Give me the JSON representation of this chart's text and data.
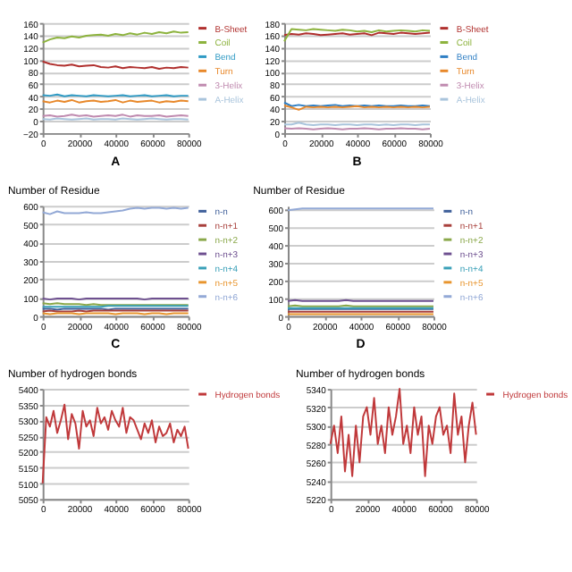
{
  "chart_data": [
    {
      "type": "line",
      "x": [
        0,
        4000,
        8000,
        12000,
        16000,
        20000,
        24000,
        28000,
        32000,
        36000,
        40000,
        44000,
        48000,
        52000,
        56000,
        60000,
        64000,
        68000,
        72000,
        76000,
        80000
      ],
      "xlim": [
        0,
        80000
      ],
      "xticks": [
        0,
        20000,
        40000,
        60000,
        80000
      ],
      "ylim": [
        -20,
        160
      ],
      "yticks": [
        -20,
        0,
        20,
        40,
        60,
        80,
        100,
        120,
        140,
        160
      ],
      "grid": "y",
      "legend": "right",
      "annotations": [
        "A"
      ],
      "series": [
        {
          "name": "B-Sheet",
          "color": "#b0302e",
          "values": [
            97,
            93,
            91,
            90,
            92,
            89,
            90,
            91,
            88,
            87,
            89,
            86,
            88,
            87,
            86,
            88,
            85,
            87,
            86,
            88,
            87
          ]
        },
        {
          "name": "Coil",
          "color": "#8db33e",
          "values": [
            128,
            133,
            136,
            135,
            138,
            136,
            139,
            140,
            141,
            139,
            142,
            140,
            143,
            141,
            144,
            142,
            145,
            143,
            146,
            144,
            145
          ]
        },
        {
          "name": "Bend",
          "color": "#2f9ac4",
          "values": [
            42,
            41,
            43,
            40,
            42,
            41,
            40,
            42,
            41,
            40,
            41,
            42,
            40,
            41,
            42,
            40,
            41,
            42,
            40,
            41,
            41
          ]
        },
        {
          "name": "Turn",
          "color": "#e8882a",
          "values": [
            32,
            30,
            33,
            31,
            34,
            30,
            32,
            33,
            31,
            32,
            34,
            30,
            33,
            31,
            32,
            33,
            30,
            32,
            31,
            33,
            32
          ]
        },
        {
          "name": "3-Helix",
          "color": "#c08bb0",
          "values": [
            8,
            9,
            7,
            8,
            10,
            8,
            9,
            7,
            8,
            9,
            8,
            10,
            7,
            9,
            8,
            8,
            9,
            7,
            8,
            9,
            8
          ]
        },
        {
          "name": "A-Helix",
          "color": "#a9c4dc",
          "values": [
            3,
            2,
            4,
            3,
            2,
            3,
            4,
            2,
            3,
            3,
            2,
            4,
            3,
            2,
            3,
            4,
            3,
            2,
            3,
            3,
            2
          ]
        }
      ]
    },
    {
      "type": "line",
      "x": [
        0,
        4000,
        8000,
        12000,
        16000,
        20000,
        24000,
        28000,
        32000,
        36000,
        40000,
        44000,
        48000,
        52000,
        56000,
        60000,
        64000,
        68000,
        72000,
        76000,
        80000
      ],
      "xlim": [
        0,
        80000
      ],
      "xticks": [
        0,
        20000,
        40000,
        60000,
        80000
      ],
      "ylim": [
        0,
        180
      ],
      "yticks": [
        0,
        20,
        40,
        60,
        80,
        100,
        120,
        140,
        160,
        180
      ],
      "grid": "y",
      "legend": "right",
      "annotations": [
        "B"
      ],
      "series": [
        {
          "name": "B-Sheet",
          "color": "#b0302e",
          "values": [
            160,
            162,
            161,
            163,
            162,
            160,
            161,
            162,
            163,
            161,
            162,
            163,
            160,
            164,
            163,
            162,
            164,
            163,
            162,
            163,
            164
          ]
        },
        {
          "name": "Coil",
          "color": "#8db33e",
          "values": [
            150,
            170,
            169,
            168,
            170,
            169,
            168,
            167,
            169,
            168,
            166,
            167,
            165,
            168,
            166,
            167,
            168,
            167,
            166,
            168,
            167
          ]
        },
        {
          "name": "Bend",
          "color": "#2f7fc4",
          "values": [
            50,
            44,
            46,
            44,
            45,
            44,
            45,
            46,
            44,
            45,
            44,
            45,
            44,
            45,
            44,
            44,
            45,
            44,
            44,
            45,
            44
          ]
        },
        {
          "name": "Turn",
          "color": "#e8882a",
          "values": [
            45,
            42,
            38,
            43,
            42,
            43,
            42,
            43,
            42,
            43,
            44,
            42,
            43,
            42,
            43,
            42,
            43,
            42,
            43,
            42,
            43
          ]
        },
        {
          "name": "3-Helix",
          "color": "#c08bb0",
          "values": [
            8,
            7,
            8,
            7,
            6,
            7,
            8,
            7,
            6,
            7,
            7,
            8,
            7,
            6,
            7,
            7,
            8,
            7,
            7,
            6,
            7
          ]
        },
        {
          "name": "A-Helix",
          "color": "#a9c4dc",
          "values": [
            14,
            14,
            17,
            14,
            13,
            14,
            14,
            13,
            14,
            14,
            13,
            14,
            14,
            13,
            14,
            13,
            14,
            14,
            13,
            14,
            14
          ]
        }
      ]
    },
    {
      "type": "line",
      "ylabel": "Number of Residue",
      "x": [
        0,
        4000,
        8000,
        12000,
        16000,
        20000,
        24000,
        28000,
        32000,
        36000,
        40000,
        44000,
        48000,
        52000,
        56000,
        60000,
        64000,
        68000,
        72000,
        76000,
        80000
      ],
      "xlim": [
        0,
        80000
      ],
      "xticks": [
        0,
        20000,
        40000,
        60000,
        80000
      ],
      "ylim": [
        0,
        600
      ],
      "yticks": [
        0,
        100,
        200,
        300,
        400,
        500,
        600
      ],
      "grid": "y",
      "legend": "right",
      "annotations": [
        "C"
      ],
      "series": [
        {
          "name": "n-n",
          "color": "#3f5f9a",
          "values": [
            40,
            40,
            35,
            40,
            40,
            40,
            40,
            40,
            40,
            35,
            40,
            40,
            40,
            40,
            40,
            40,
            40,
            40,
            40,
            40,
            40
          ]
        },
        {
          "name": "n-n+1",
          "color": "#a8403c",
          "values": [
            25,
            30,
            25,
            25,
            25,
            30,
            25,
            30,
            30,
            30,
            30,
            30,
            30,
            30,
            30,
            30,
            30,
            30,
            30,
            30,
            30
          ]
        },
        {
          "name": "n-n+2",
          "color": "#8aa84a",
          "values": [
            70,
            65,
            70,
            65,
            65,
            65,
            60,
            65,
            60,
            60,
            60,
            60,
            60,
            60,
            60,
            60,
            60,
            60,
            60,
            60,
            60
          ]
        },
        {
          "name": "n-n+3",
          "color": "#6e5090",
          "values": [
            95,
            90,
            95,
            95,
            95,
            90,
            95,
            95,
            95,
            95,
            95,
            95,
            95,
            95,
            90,
            95,
            95,
            95,
            95,
            95,
            95
          ]
        },
        {
          "name": "n-n+4",
          "color": "#3aa0b8",
          "values": [
            50,
            50,
            50,
            50,
            50,
            50,
            50,
            50,
            50,
            55,
            55,
            55,
            55,
            55,
            55,
            55,
            55,
            55,
            55,
            55,
            55
          ]
        },
        {
          "name": "n-n+5",
          "color": "#e8952e",
          "values": [
            15,
            10,
            15,
            15,
            15,
            10,
            15,
            15,
            15,
            15,
            10,
            15,
            15,
            15,
            10,
            15,
            15,
            10,
            15,
            15,
            15
          ]
        },
        {
          "name": "n-n+6",
          "color": "#93a9d6",
          "values": [
            565,
            555,
            570,
            560,
            560,
            560,
            565,
            560,
            560,
            565,
            570,
            575,
            585,
            590,
            585,
            590,
            590,
            585,
            590,
            585,
            590
          ]
        }
      ]
    },
    {
      "type": "line",
      "ylabel": "Number of Residue",
      "x": [
        0,
        4000,
        8000,
        12000,
        16000,
        20000,
        24000,
        28000,
        32000,
        36000,
        40000,
        44000,
        48000,
        52000,
        56000,
        60000,
        64000,
        68000,
        72000,
        76000,
        80000
      ],
      "xlim": [
        0,
        80000
      ],
      "xticks": [
        0,
        20000,
        40000,
        60000,
        80000
      ],
      "ylim": [
        0,
        620
      ],
      "yticks": [
        0,
        100,
        200,
        300,
        400,
        500,
        600
      ],
      "grid": "y",
      "legend": "right",
      "annotations": [
        "D"
      ],
      "series": [
        {
          "name": "n-n",
          "color": "#3f5f9a",
          "values": [
            40,
            40,
            40,
            40,
            40,
            40,
            40,
            40,
            40,
            40,
            40,
            40,
            40,
            40,
            40,
            40,
            40,
            40,
            40,
            40,
            40
          ]
        },
        {
          "name": "n-n+1",
          "color": "#a8403c",
          "values": [
            25,
            25,
            25,
            25,
            25,
            25,
            25,
            25,
            25,
            25,
            25,
            25,
            25,
            25,
            25,
            25,
            25,
            25,
            25,
            25,
            25
          ]
        },
        {
          "name": "n-n+2",
          "color": "#8aa84a",
          "values": [
            55,
            60,
            55,
            55,
            55,
            55,
            55,
            55,
            60,
            55,
            55,
            55,
            55,
            55,
            55,
            55,
            55,
            55,
            55,
            55,
            55
          ]
        },
        {
          "name": "n-n+3",
          "color": "#6e5090",
          "values": [
            85,
            90,
            85,
            85,
            85,
            85,
            85,
            85,
            90,
            85,
            85,
            85,
            85,
            85,
            85,
            85,
            85,
            85,
            85,
            85,
            85
          ]
        },
        {
          "name": "n-n+4",
          "color": "#3aa0b8",
          "values": [
            45,
            45,
            45,
            45,
            45,
            45,
            45,
            45,
            45,
            45,
            45,
            45,
            45,
            45,
            45,
            45,
            45,
            45,
            45,
            45,
            45
          ]
        },
        {
          "name": "n-n+5",
          "color": "#e8952e",
          "values": [
            10,
            10,
            10,
            10,
            10,
            10,
            10,
            10,
            10,
            10,
            10,
            10,
            10,
            10,
            10,
            10,
            10,
            10,
            10,
            10,
            10
          ]
        },
        {
          "name": "n-n+6",
          "color": "#93a9d6",
          "values": [
            595,
            600,
            605,
            605,
            605,
            605,
            605,
            605,
            605,
            605,
            605,
            605,
            605,
            605,
            605,
            605,
            605,
            605,
            605,
            605,
            605
          ]
        }
      ]
    },
    {
      "type": "line",
      "ylabel": "Number of hydrogen bonds",
      "x": [
        0,
        2000,
        4000,
        6000,
        8000,
        10000,
        12000,
        14000,
        16000,
        18000,
        20000,
        22000,
        24000,
        26000,
        28000,
        30000,
        32000,
        34000,
        36000,
        38000,
        40000,
        42000,
        44000,
        46000,
        48000,
        50000,
        52000,
        54000,
        56000,
        58000,
        60000,
        62000,
        64000,
        66000,
        68000,
        70000,
        72000,
        74000,
        76000,
        78000,
        80000
      ],
      "xlim": [
        0,
        80000
      ],
      "xticks": [
        0,
        20000,
        40000,
        60000,
        80000
      ],
      "ylim": [
        5050,
        5400
      ],
      "yticks": [
        5050,
        5100,
        5150,
        5200,
        5250,
        5300,
        5350,
        5400
      ],
      "grid": "y",
      "legend": "right",
      "series": [
        {
          "name": "Hydrogen bonds",
          "color": "#c0393b",
          "values": [
            5100,
            5310,
            5280,
            5330,
            5260,
            5300,
            5350,
            5240,
            5320,
            5290,
            5210,
            5330,
            5280,
            5300,
            5250,
            5340,
            5290,
            5310,
            5270,
            5330,
            5300,
            5280,
            5340,
            5260,
            5310,
            5300,
            5270,
            5240,
            5290,
            5260,
            5300,
            5230,
            5280,
            5250,
            5260,
            5290,
            5230,
            5270,
            5250,
            5280,
            5210
          ]
        }
      ]
    },
    {
      "type": "line",
      "ylabel": "Number of hydrogen bonds",
      "x": [
        0,
        2000,
        4000,
        6000,
        8000,
        10000,
        12000,
        14000,
        16000,
        18000,
        20000,
        22000,
        24000,
        26000,
        28000,
        30000,
        32000,
        34000,
        36000,
        38000,
        40000,
        42000,
        44000,
        46000,
        48000,
        50000,
        52000,
        54000,
        56000,
        58000,
        60000,
        62000,
        64000,
        66000,
        68000,
        70000,
        72000,
        74000,
        76000,
        78000,
        80000
      ],
      "xlim": [
        0,
        80000
      ],
      "xticks": [
        0,
        20000,
        40000,
        60000,
        80000
      ],
      "ylim": [
        5220,
        5340
      ],
      "yticks": [
        5220,
        5240,
        5260,
        5280,
        5300,
        5320,
        5340
      ],
      "grid": "y",
      "legend": "right",
      "series": [
        {
          "name": "Hydrogen bonds",
          "color": "#c0393b",
          "values": [
            5280,
            5300,
            5270,
            5310,
            5250,
            5290,
            5245,
            5300,
            5260,
            5310,
            5320,
            5290,
            5330,
            5280,
            5300,
            5270,
            5320,
            5290,
            5310,
            5340,
            5280,
            5300,
            5270,
            5320,
            5290,
            5310,
            5245,
            5300,
            5280,
            5310,
            5320,
            5290,
            5300,
            5270,
            5335,
            5290,
            5310,
            5260,
            5300,
            5325,
            5290
          ]
        }
      ]
    }
  ]
}
